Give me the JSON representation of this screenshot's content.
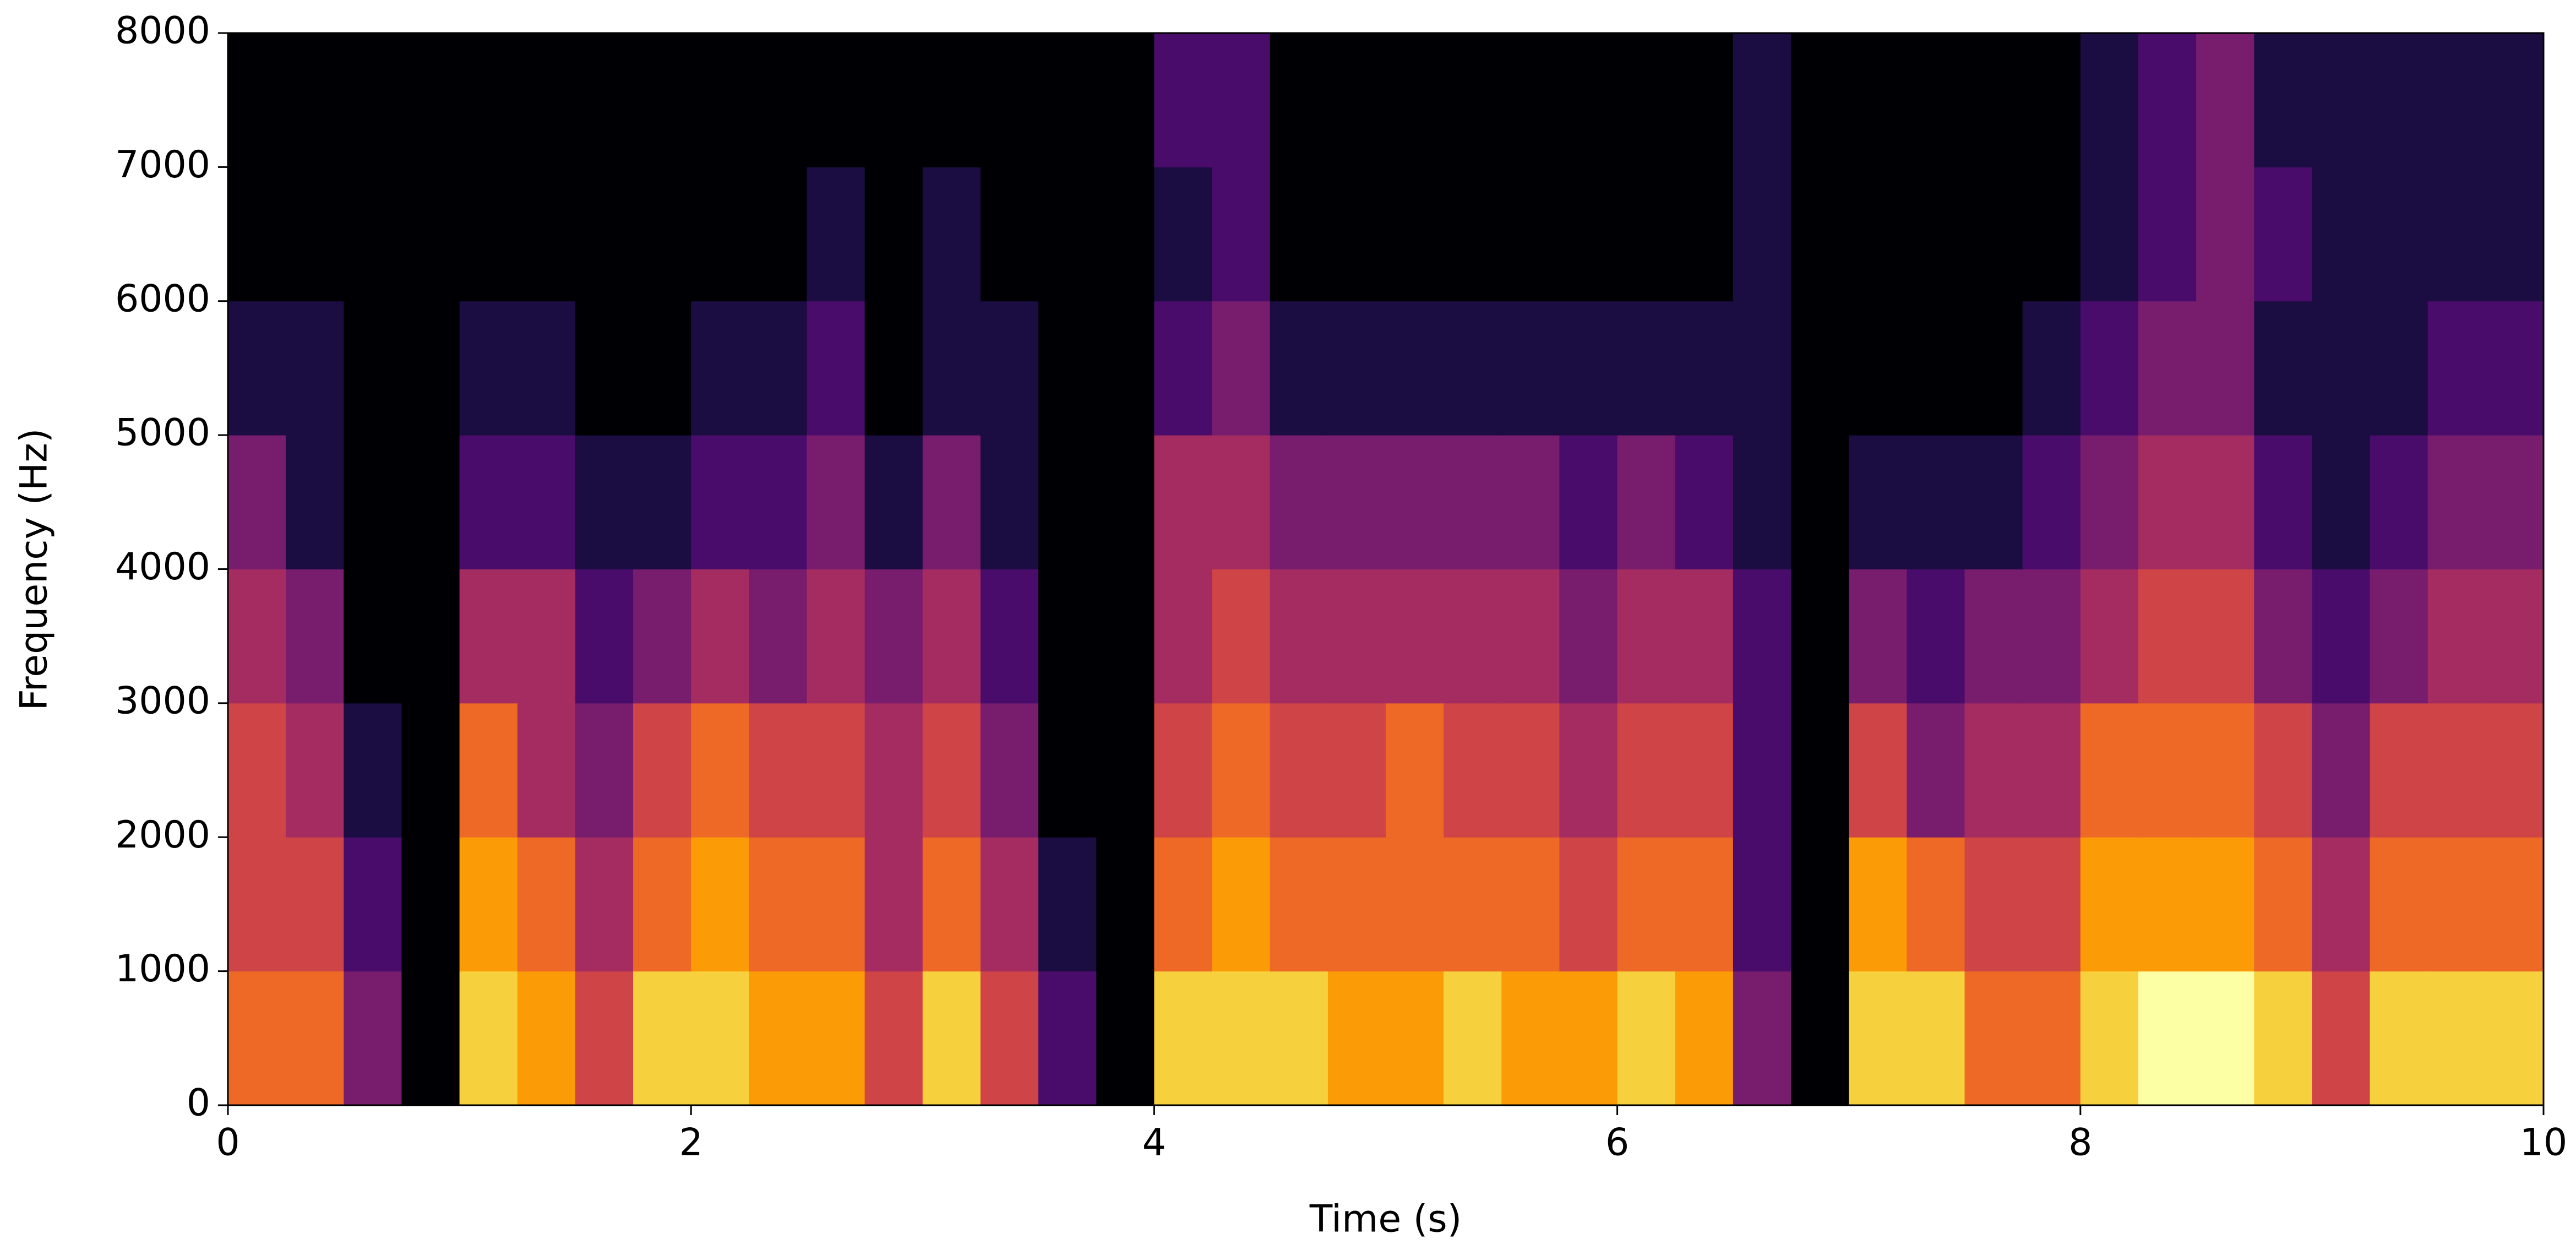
{
  "chart_data": {
    "type": "spectrogram",
    "x_label": "Time (s)",
    "y_label": "Frequency (Hz)",
    "xlim": [
      0,
      10
    ],
    "ylim": [
      0,
      8000
    ],
    "xticks": [
      0,
      2,
      4,
      6,
      8,
      10
    ],
    "yticks": [
      0,
      1000,
      2000,
      3000,
      4000,
      5000,
      6000,
      7000,
      8000
    ],
    "xbins": [
      0,
      0.25,
      0.5,
      0.75,
      1,
      1.25,
      1.5,
      1.75,
      2,
      2.25,
      2.5,
      2.75,
      3,
      3.25,
      3.5,
      3.75,
      4,
      4.25,
      4.5,
      4.75,
      5,
      5.25,
      5.5,
      5.75,
      6,
      6.25,
      6.5,
      6.75,
      7,
      7.25,
      7.5,
      7.75,
      8,
      8.25,
      8.5,
      8.75,
      9,
      9.25,
      9.5,
      9.75,
      10
    ],
    "ybins": [
      0,
      1000,
      2000,
      3000,
      4000,
      5000,
      6000,
      7000,
      8000
    ],
    "zlim": [
      0,
      9
    ],
    "colormap": [
      "#000004",
      "#1b0c41",
      "#4a0c6b",
      "#781c6d",
      "#a52c60",
      "#cf4446",
      "#ed6925",
      "#fb9b06",
      "#f7d13d",
      "#fcffa4"
    ],
    "z": [
      [
        6,
        6,
        3,
        0,
        8,
        7,
        5,
        8,
        8,
        7,
        7,
        5,
        8,
        5,
        2,
        0,
        8,
        8,
        8,
        7,
        7,
        8,
        7,
        7,
        8,
        7,
        3,
        0,
        8,
        8,
        6,
        6,
        8,
        9,
        9,
        8,
        5,
        8,
        8,
        8
      ],
      [
        5,
        5,
        2,
        0,
        7,
        6,
        4,
        6,
        7,
        6,
        6,
        4,
        6,
        4,
        1,
        0,
        6,
        7,
        6,
        6,
        6,
        6,
        6,
        5,
        6,
        6,
        2,
        0,
        7,
        6,
        5,
        5,
        7,
        7,
        7,
        6,
        4,
        6,
        6,
        6
      ],
      [
        5,
        4,
        1,
        0,
        6,
        4,
        3,
        5,
        6,
        5,
        5,
        4,
        5,
        3,
        0,
        0,
        5,
        6,
        5,
        5,
        6,
        5,
        5,
        4,
        5,
        5,
        2,
        0,
        5,
        3,
        4,
        4,
        6,
        6,
        6,
        5,
        3,
        5,
        5,
        5
      ],
      [
        4,
        3,
        0,
        0,
        4,
        4,
        2,
        3,
        4,
        3,
        4,
        3,
        4,
        2,
        0,
        0,
        4,
        5,
        4,
        4,
        4,
        4,
        4,
        3,
        4,
        4,
        2,
        0,
        3,
        2,
        3,
        3,
        4,
        5,
        5,
        3,
        2,
        3,
        4,
        4
      ],
      [
        3,
        1,
        0,
        0,
        2,
        2,
        1,
        1,
        2,
        2,
        3,
        1,
        3,
        1,
        0,
        0,
        4,
        4,
        3,
        3,
        3,
        3,
        3,
        2,
        3,
        2,
        1,
        0,
        1,
        1,
        1,
        2,
        3,
        4,
        4,
        2,
        1,
        2,
        3,
        3
      ],
      [
        1,
        1,
        0,
        0,
        1,
        1,
        0,
        0,
        1,
        1,
        2,
        0,
        1,
        1,
        0,
        0,
        2,
        3,
        1,
        1,
        1,
        1,
        1,
        1,
        1,
        1,
        1,
        0,
        0,
        0,
        0,
        1,
        2,
        3,
        3,
        1,
        1,
        1,
        2,
        2
      ],
      [
        0,
        0,
        0,
        0,
        0,
        0,
        0,
        0,
        0,
        0,
        1,
        0,
        1,
        0,
        0,
        0,
        1,
        2,
        0,
        0,
        0,
        0,
        0,
        0,
        0,
        0,
        1,
        0,
        0,
        0,
        0,
        0,
        1,
        2,
        3,
        2,
        1,
        1,
        1,
        1
      ],
      [
        0,
        0,
        0,
        0,
        0,
        0,
        0,
        0,
        0,
        0,
        0,
        0,
        0,
        0,
        0,
        0,
        2,
        2,
        0,
        0,
        0,
        0,
        0,
        0,
        0,
        0,
        1,
        0,
        0,
        0,
        0,
        0,
        1,
        2,
        3,
        1,
        1,
        1,
        1,
        1
      ]
    ]
  }
}
